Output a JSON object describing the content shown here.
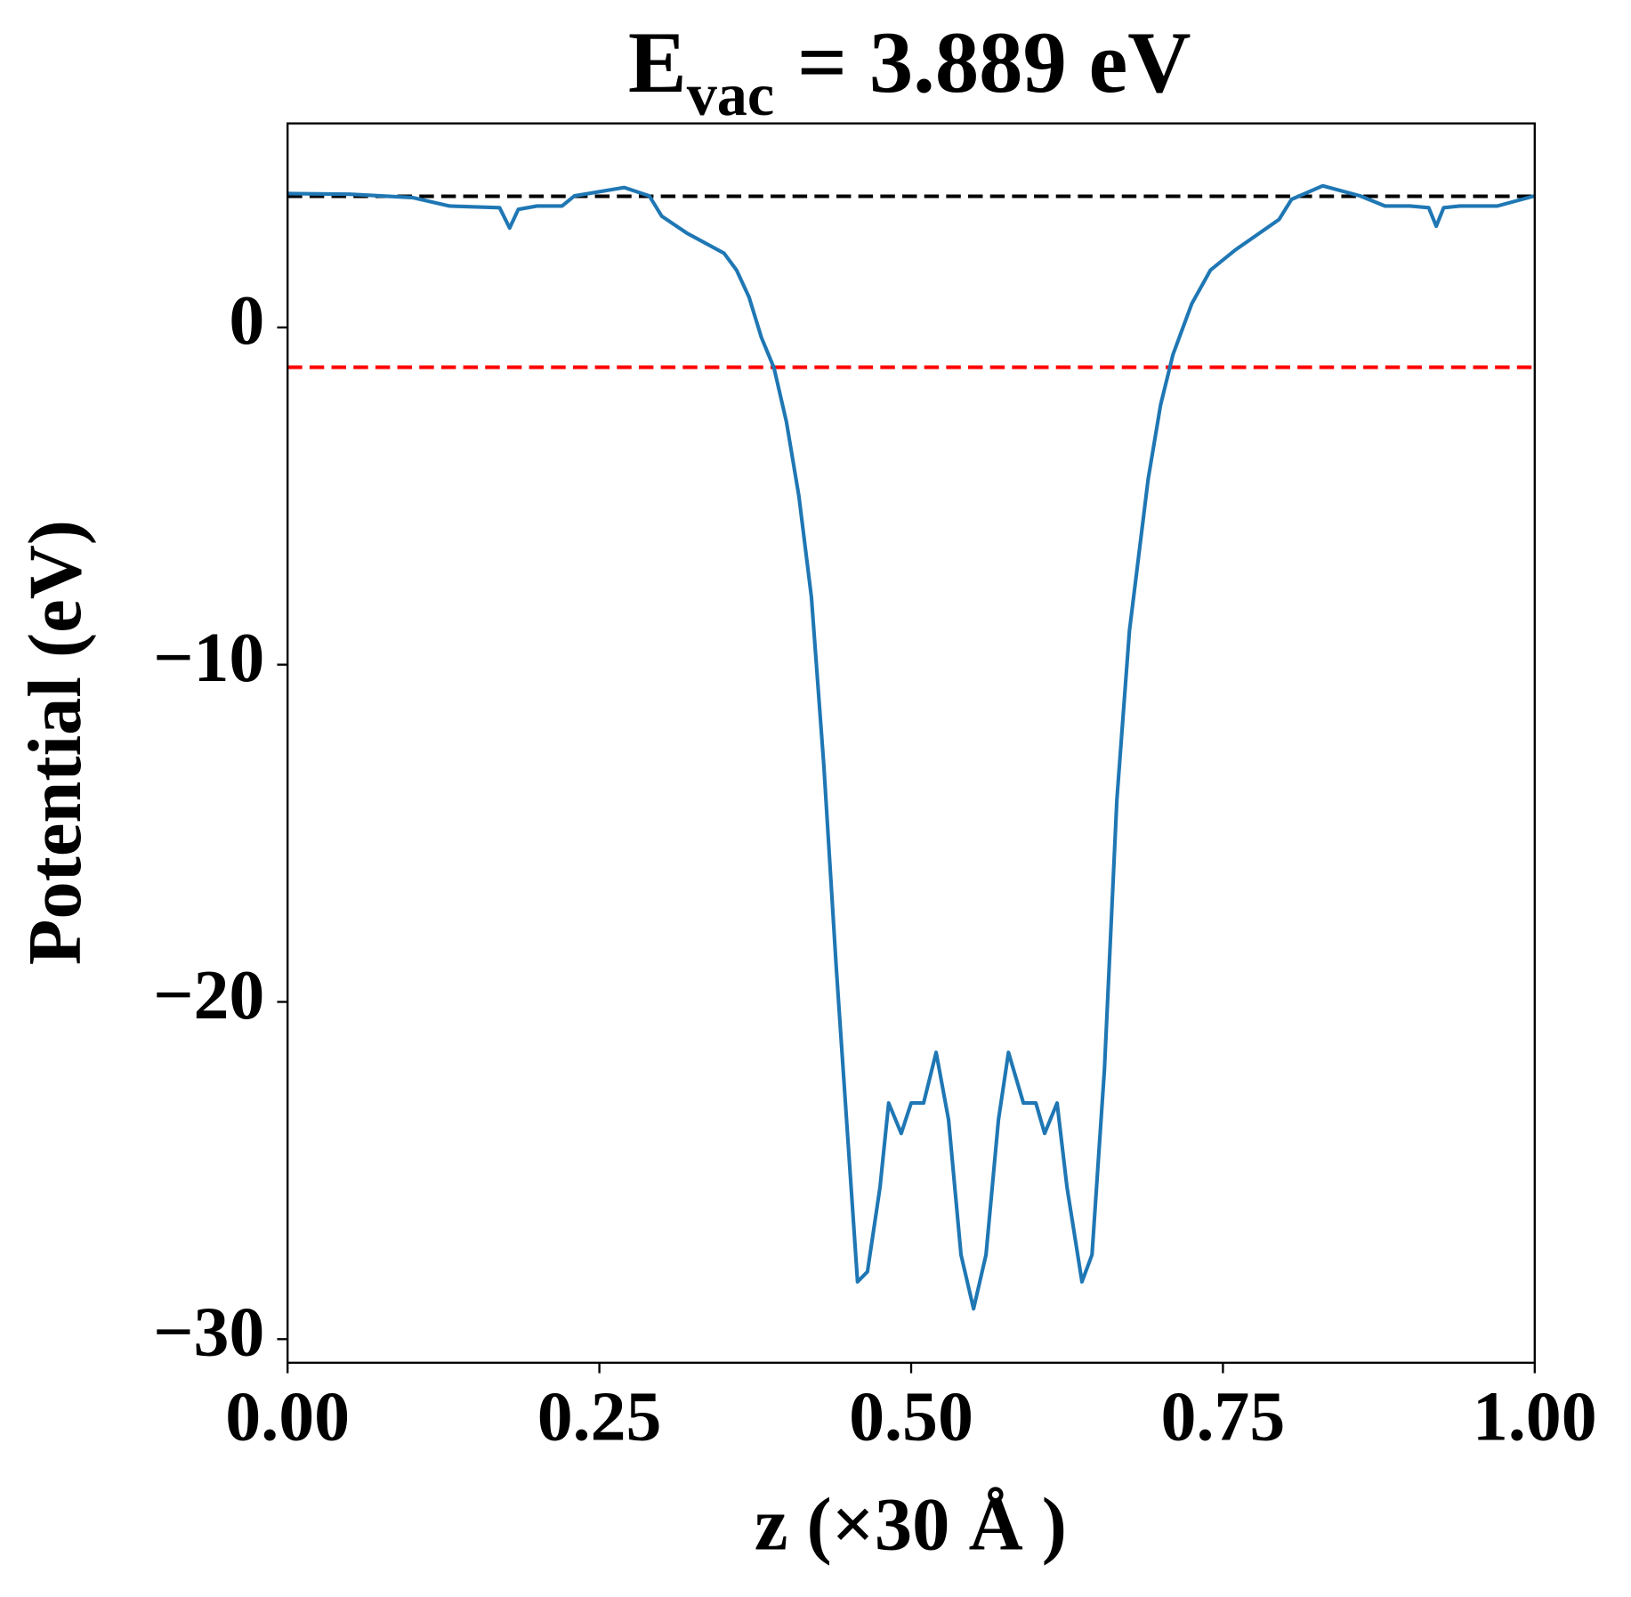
{
  "chart_data": {
    "type": "line",
    "title": {
      "main": "E",
      "subscript": "vac",
      "rest": "= 3.889 eV"
    },
    "xlabel": "z (×30 Å )",
    "ylabel": "Potential (eV)",
    "xlim": [
      0,
      1
    ],
    "ylim": [
      -30.7,
      6.05
    ],
    "xticks": [
      {
        "value": 0,
        "label": "0.00"
      },
      {
        "value": 0.25,
        "label": "0.25"
      },
      {
        "value": 0.5,
        "label": "0.50"
      },
      {
        "value": 0.75,
        "label": "0.75"
      },
      {
        "value": 1,
        "label": "1.00"
      }
    ],
    "yticks": [
      {
        "value": -30,
        "label": "−30"
      },
      {
        "value": -20,
        "label": "−20"
      },
      {
        "value": -10,
        "label": "−10"
      },
      0
    ],
    "hlines": [
      {
        "y": 3.889,
        "color": "#000000"
      },
      {
        "y": -1.18,
        "color": "#ff0000"
      }
    ],
    "series": [
      {
        "color": "#1f77b4",
        "x": [
          0,
          0.05,
          0.1,
          0.13,
          0.17,
          0.178,
          0.185,
          0.2,
          0.22,
          0.23,
          0.27,
          0.29,
          0.3,
          0.32,
          0.35,
          0.36,
          0.37,
          0.38,
          0.39,
          0.4,
          0.41,
          0.42,
          0.43,
          0.44,
          0.45,
          0.457,
          0.465,
          0.475,
          0.482,
          0.492,
          0.5,
          0.51,
          0.52,
          0.53,
          0.54,
          0.55,
          0.56,
          0.57,
          0.578,
          0.59,
          0.6,
          0.607,
          0.617,
          0.625,
          0.637,
          0.645,
          0.655,
          0.665,
          0.675,
          0.69,
          0.7,
          0.71,
          0.725,
          0.74,
          0.76,
          0.795,
          0.805,
          0.83,
          0.86,
          0.88,
          0.9,
          0.915,
          0.921,
          0.927,
          0.94,
          0.97,
          1
        ],
        "values": [
          3.97,
          3.95,
          3.85,
          3.6,
          3.55,
          2.95,
          3.5,
          3.6,
          3.6,
          3.9,
          4.15,
          3.9,
          3.3,
          2.8,
          2.2,
          1.7,
          0.9,
          -0.3,
          -1.2,
          -2.8,
          -5,
          -8,
          -13,
          -19,
          -24.5,
          -28.3,
          -28.0,
          -25.5,
          -23.0,
          -23.9,
          -23.0,
          -23.0,
          -21.5,
          -23.5,
          -27.5,
          -29.1,
          -27.5,
          -23.5,
          -21.5,
          -23.0,
          -23.0,
          -23.9,
          -23.0,
          -25.5,
          -28.3,
          -27.5,
          -22,
          -14,
          -9,
          -4.5,
          -2.3,
          -0.8,
          0.7,
          1.7,
          2.3,
          3.2,
          3.8,
          4.2,
          3.9,
          3.6,
          3.6,
          3.55,
          3.0,
          3.55,
          3.6,
          3.6,
          3.9
        ]
      }
    ]
  }
}
